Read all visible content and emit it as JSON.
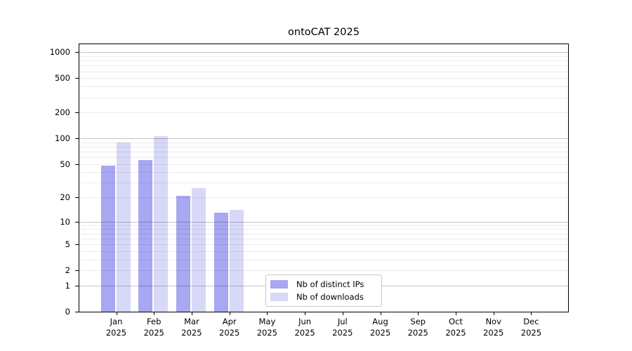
{
  "chart_data": {
    "type": "bar",
    "title": "ontoCAT 2025",
    "categories": [
      "Jan",
      "Feb",
      "Mar",
      "Apr",
      "May",
      "Jun",
      "Jul",
      "Aug",
      "Sep",
      "Oct",
      "Nov",
      "Dec"
    ],
    "year_label": "2025",
    "series": [
      {
        "name": "Nb of distinct IPs",
        "color": "#a7a7f2",
        "values": [
          48,
          56,
          21,
          13,
          0,
          0,
          0,
          0,
          0,
          0,
          0,
          0
        ]
      },
      {
        "name": "Nb of downloads",
        "color": "#d8d8f8",
        "values": [
          90,
          105,
          26,
          14,
          0,
          0,
          0,
          0,
          0,
          0,
          0,
          0
        ]
      }
    ],
    "yscale": "log1p",
    "ylim": [
      0,
      1270
    ],
    "yticks": [
      "0",
      "1",
      "2",
      "5",
      "10",
      "20",
      "50",
      "100",
      "200",
      "500",
      "1000"
    ],
    "major_gridlines": [
      1,
      10,
      100,
      1000
    ],
    "minor_gridlines": [
      2,
      3,
      4,
      5,
      6,
      7,
      8,
      9,
      20,
      30,
      40,
      50,
      60,
      70,
      80,
      90,
      200,
      300,
      400,
      500,
      600,
      700,
      800,
      900
    ],
    "grid": true,
    "legend_position": "lower center"
  },
  "colors": {
    "bar_distinct_ips": "#a7a7f2",
    "bar_downloads": "#d8d8f8",
    "major_grid": "#c6c6c6",
    "minor_grid": "#ececec",
    "spine": "#000000"
  }
}
